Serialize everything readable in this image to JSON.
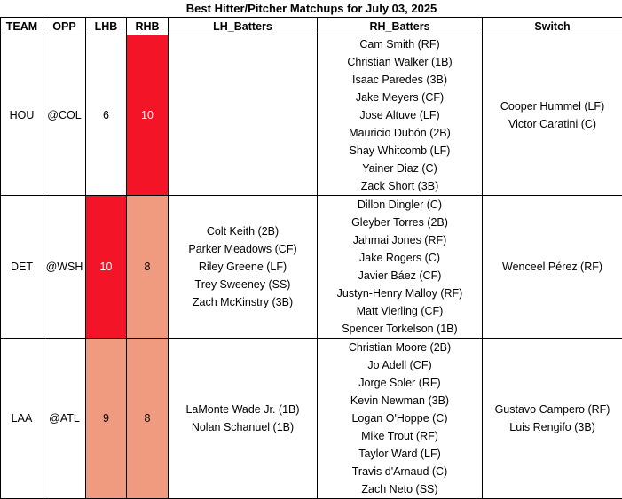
{
  "title": "Best Hitter/Pitcher Matchups for July 03, 2025",
  "columns": [
    "TEAM",
    "OPP",
    "LHB",
    "RHB",
    "LH_Batters",
    "RH_Batters",
    "Switch"
  ],
  "colors": {
    "hot": "#f41427",
    "warm": "#f09a80"
  },
  "rows": [
    {
      "team": "HOU",
      "opp": "@COL",
      "lhb": "6",
      "rhb": "10",
      "lhb_heat": "none",
      "rhb_heat": "hot",
      "lh_batters": [],
      "rh_batters": [
        "Cam Smith (RF)",
        "Christian Walker (1B)",
        "Isaac Paredes (3B)",
        "Jake Meyers (CF)",
        "Jose Altuve (LF)",
        "Mauricio Dubón (2B)",
        "Shay Whitcomb (LF)",
        "Yainer Diaz (C)",
        "Zack Short (3B)"
      ],
      "switch": [
        "Cooper Hummel (LF)",
        "Victor Caratini (C)"
      ]
    },
    {
      "team": "DET",
      "opp": "@WSH",
      "lhb": "10",
      "rhb": "8",
      "lhb_heat": "hot",
      "rhb_heat": "warm",
      "lh_batters": [
        "Colt Keith (2B)",
        "Parker Meadows (CF)",
        "Riley Greene (LF)",
        "Trey Sweeney (SS)",
        "Zach McKinstry (3B)"
      ],
      "rh_batters": [
        "Dillon Dingler (C)",
        "Gleyber Torres (2B)",
        "Jahmai Jones (RF)",
        "Jake Rogers (C)",
        "Javier Báez (CF)",
        "Justyn-Henry Malloy (RF)",
        "Matt Vierling (CF)",
        "Spencer Torkelson (1B)"
      ],
      "switch": [
        "Wenceel Pérez (RF)"
      ]
    },
    {
      "team": "LAA",
      "opp": "@ATL",
      "lhb": "9",
      "rhb": "8",
      "lhb_heat": "warm",
      "rhb_heat": "warm",
      "lh_batters": [
        "LaMonte Wade Jr. (1B)",
        "Nolan Schanuel (1B)"
      ],
      "rh_batters": [
        "Christian Moore (2B)",
        "Jo Adell (CF)",
        "Jorge Soler (RF)",
        "Kevin Newman (3B)",
        "Logan O'Hoppe (C)",
        "Mike Trout (RF)",
        "Taylor Ward (LF)",
        "Travis d'Arnaud (C)",
        "Zach Neto (SS)"
      ],
      "switch": [
        "Gustavo Campero (RF)",
        "Luis Rengifo (3B)"
      ]
    }
  ]
}
